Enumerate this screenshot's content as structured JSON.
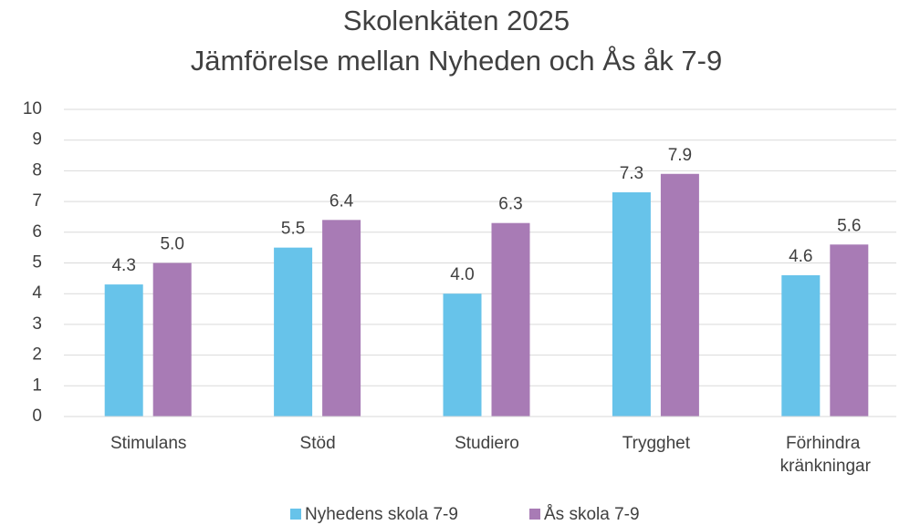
{
  "chart_data": {
    "type": "bar",
    "title": "Skolenkäten 2025",
    "subtitle": "Jämförelse mellan Nyheden och Ås åk 7-9",
    "categories": [
      "Stimulans",
      "Stöd",
      "Studiero",
      "Trygghet",
      "Förhindra kränkningar"
    ],
    "series": [
      {
        "name": "Nyhedens skola 7-9",
        "color": "#67c3ea",
        "values": [
          4.3,
          5.5,
          4.0,
          7.3,
          4.6
        ],
        "value_labels": [
          "4.3",
          "5.5",
          "4.0",
          "7.3",
          "4.6"
        ]
      },
      {
        "name": "Ås skola 7-9",
        "color": "#a87bb5",
        "values": [
          5.0,
          6.4,
          6.3,
          7.9,
          5.6
        ],
        "value_labels": [
          "5.0",
          "6.4",
          "6.3",
          "7.9",
          "5.6"
        ]
      }
    ],
    "ylim": [
      0,
      10
    ],
    "yticks": [
      0,
      1,
      2,
      3,
      4,
      5,
      6,
      7,
      8,
      9,
      10
    ],
    "grid": true,
    "legend": "bottom"
  }
}
